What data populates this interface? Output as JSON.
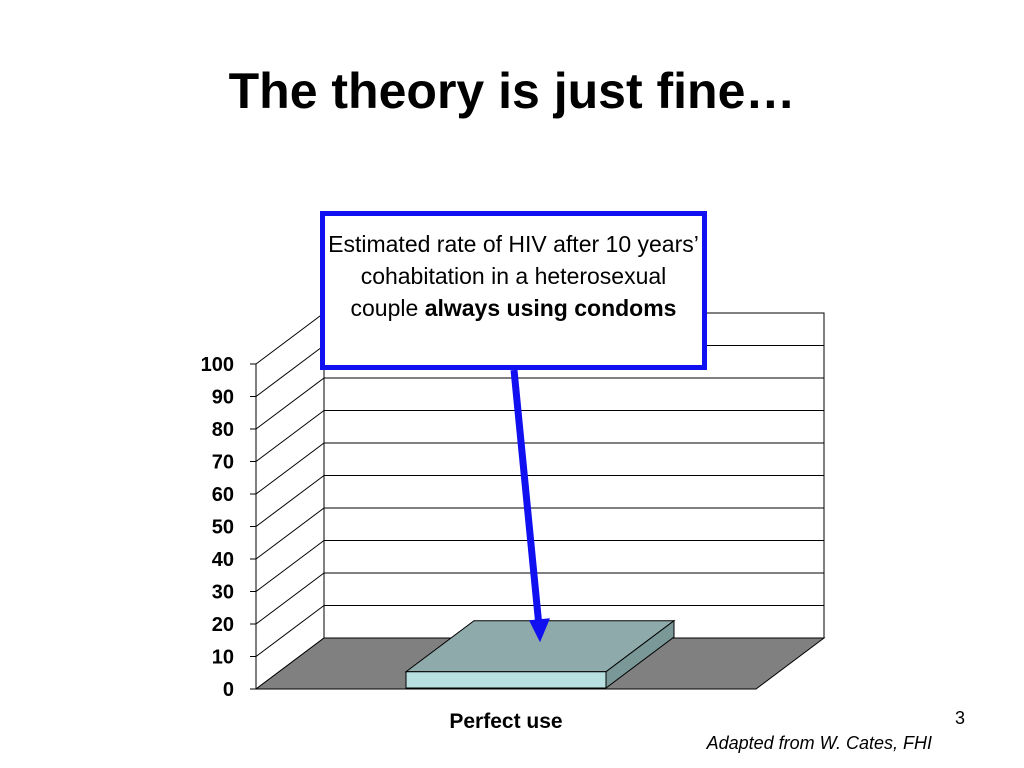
{
  "slide": {
    "title": "The theory is just fine…",
    "page_number": "3",
    "source_note": "Adapted from W. Cates, FHI"
  },
  "callout": {
    "text_regular": "Estimated rate of HIV after 10 years’ cohabitation in a heterosexual couple",
    "text_bold": "always using condoms",
    "border_color": "#1010f0",
    "arrow_color": "#1010f0"
  },
  "chart_data": {
    "type": "bar",
    "categories": [
      "Perfect use"
    ],
    "values": [
      5
    ],
    "ylim": [
      0,
      100
    ],
    "yticks": [
      0,
      10,
      20,
      30,
      40,
      50,
      60,
      70,
      80,
      90,
      100
    ],
    "grid": true,
    "colors": {
      "bar_front": "#b8e0e0",
      "bar_top": "#8eaaaa",
      "bar_side": "#7a9898",
      "floor": "#808080"
    }
  }
}
